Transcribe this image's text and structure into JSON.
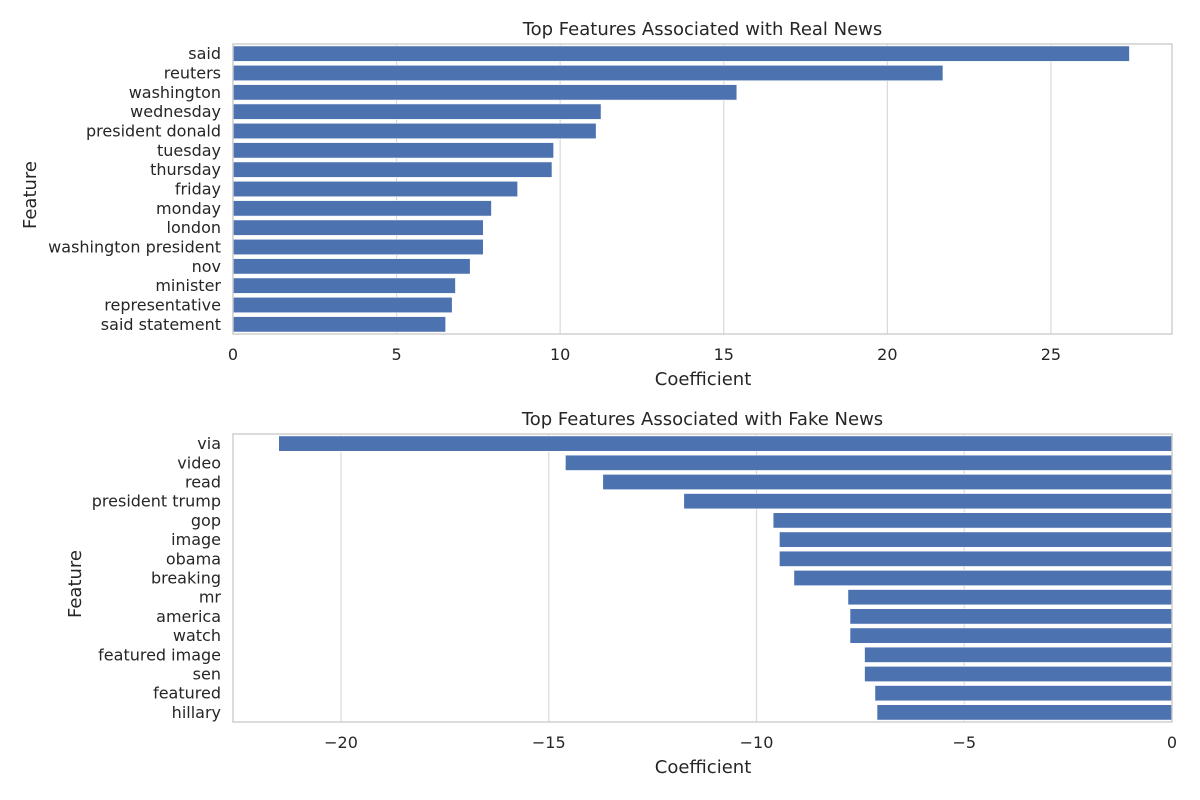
{
  "chart_data": [
    {
      "type": "bar",
      "orientation": "horizontal",
      "title": "Top Features Associated with Real News",
      "xlabel": "Coefficient",
      "ylabel": "Feature",
      "xlim": [
        0,
        28.7
      ],
      "xticks": [
        0,
        5,
        10,
        15,
        20,
        25
      ],
      "grid": true,
      "color": "#4c72b0",
      "categories": [
        "said",
        "reuters",
        "washington",
        "wednesday",
        "president donald",
        "tuesday",
        "thursday",
        "friday",
        "monday",
        "london",
        "washington president",
        "nov",
        "minister",
        "representative",
        "said statement"
      ],
      "values": [
        27.4,
        21.7,
        15.4,
        11.25,
        11.1,
        9.8,
        9.75,
        8.7,
        7.9,
        7.65,
        7.65,
        7.25,
        6.8,
        6.7,
        6.5
      ]
    },
    {
      "type": "bar",
      "orientation": "horizontal",
      "title": "Top Features Associated with Fake News",
      "xlabel": "Coefficient",
      "ylabel": "Feature",
      "xlim": [
        -22.6,
        0
      ],
      "xticks": [
        -20,
        -15,
        -10,
        -5,
        0
      ],
      "grid": true,
      "color": "#4c72b0",
      "categories": [
        "via",
        "video",
        "read",
        "president trump",
        "gop",
        "image",
        "obama",
        "breaking",
        "mr",
        "america",
        "watch",
        "featured image",
        "sen",
        "featured",
        "hillary"
      ],
      "values": [
        -21.5,
        -14.6,
        -13.7,
        -11.75,
        -9.6,
        -9.45,
        -9.45,
        -9.1,
        -7.8,
        -7.75,
        -7.75,
        -7.4,
        -7.4,
        -7.15,
        -7.1
      ]
    }
  ]
}
